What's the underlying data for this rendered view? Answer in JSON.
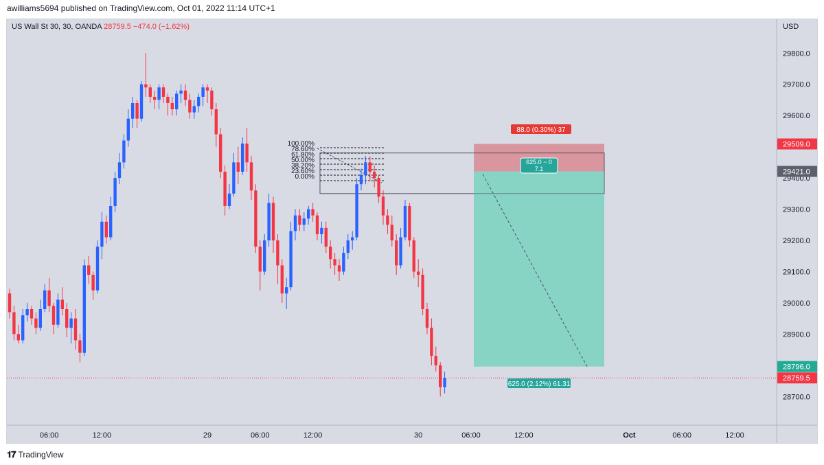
{
  "header": {
    "published": "awilliams5694 published on TradingView.com, Oct 01, 2022 11:14 UTC+1"
  },
  "legend": {
    "symbol": "US Wall St 30, 30, OANDA",
    "price": "28759.5",
    "change": "−474.0 (−1.62%)"
  },
  "footer": {
    "brand": "TradingView",
    "logo": "tradingview-logo-icon"
  },
  "colors": {
    "up": "#2962ff",
    "down": "#f23645",
    "background": "#d9dbe4",
    "profit": "#7fd3c2",
    "stop": "#d88a92"
  },
  "chart_data": {
    "type": "candlestick",
    "currency": "USD",
    "y_axis_labels": [
      "29800.0",
      "29700.0",
      "29600.0",
      "29500.0",
      "29400.0",
      "29300.0",
      "29200.0",
      "29100.0",
      "29000.0",
      "28900.0",
      "28700.0"
    ],
    "ylim": [
      28650,
      29860
    ],
    "x_axis_labels": [
      {
        "label": "06:00",
        "bar": 9
      },
      {
        "label": "12:00",
        "bar": 21
      },
      {
        "label": "29",
        "bar": 45
      },
      {
        "label": "06:00",
        "bar": 57
      },
      {
        "label": "12:00",
        "bar": 69
      },
      {
        "label": "30",
        "bar": 93
      },
      {
        "label": "06:00",
        "bar": 105
      },
      {
        "label": "12:00",
        "bar": 117
      },
      {
        "label": "Oct",
        "bar": 141,
        "bold": true
      },
      {
        "label": "06:00",
        "bar": 153
      },
      {
        "label": "12:00",
        "bar": 165
      }
    ],
    "price_tags": [
      {
        "label": "29509.0",
        "value": 29509,
        "color": "#f23645"
      },
      {
        "label": "29421.0",
        "value": 29421,
        "color": "#5d606b"
      },
      {
        "label": "28796.0",
        "value": 28796,
        "color": "#22ab94"
      },
      {
        "label": "28759.5",
        "value": 28759.5,
        "color": "#f23645"
      }
    ],
    "current_price": 28759.5,
    "candles": [
      [
        29030,
        29045,
        28950,
        28970
      ],
      [
        28970,
        28990,
        28880,
        28900
      ],
      [
        28900,
        28930,
        28870,
        28880
      ],
      [
        28880,
        28980,
        28870,
        28960
      ],
      [
        28960,
        29000,
        28940,
        28980
      ],
      [
        28980,
        28990,
        28930,
        28950
      ],
      [
        28950,
        28970,
        28900,
        28920
      ],
      [
        28920,
        29010,
        28910,
        28980
      ],
      [
        28980,
        29060,
        28970,
        29040
      ],
      [
        29040,
        29080,
        28970,
        28990
      ],
      [
        28990,
        29000,
        28900,
        28930
      ],
      [
        28930,
        29030,
        28920,
        29010
      ],
      [
        29010,
        29050,
        28960,
        28980
      ],
      [
        28980,
        29000,
        28890,
        28920
      ],
      [
        28920,
        28970,
        28870,
        28950
      ],
      [
        28950,
        28980,
        28850,
        28880
      ],
      [
        28880,
        28900,
        28810,
        28840
      ],
      [
        28840,
        29140,
        28830,
        29120
      ],
      [
        29120,
        29150,
        29060,
        29090
      ],
      [
        29090,
        29100,
        29010,
        29040
      ],
      [
        29040,
        29200,
        29030,
        29180
      ],
      [
        29180,
        29290,
        29140,
        29260
      ],
      [
        29260,
        29280,
        29190,
        29210
      ],
      [
        29210,
        29340,
        29200,
        29310
      ],
      [
        29310,
        29420,
        29290,
        29400
      ],
      [
        29400,
        29480,
        29380,
        29450
      ],
      [
        29450,
        29540,
        29430,
        29520
      ],
      [
        29520,
        29620,
        29500,
        29590
      ],
      [
        29590,
        29660,
        29560,
        29640
      ],
      [
        29640,
        29650,
        29560,
        29590
      ],
      [
        29590,
        29710,
        29580,
        29700
      ],
      [
        29700,
        29800,
        29660,
        29690
      ],
      [
        29690,
        29700,
        29640,
        29660
      ],
      [
        29660,
        29680,
        29620,
        29650
      ],
      [
        29650,
        29700,
        29620,
        29690
      ],
      [
        29690,
        29700,
        29640,
        29660
      ],
      [
        29660,
        29670,
        29600,
        29640
      ],
      [
        29640,
        29660,
        29600,
        29620
      ],
      [
        29620,
        29680,
        29600,
        29670
      ],
      [
        29670,
        29700,
        29640,
        29680
      ],
      [
        29680,
        29700,
        29630,
        29650
      ],
      [
        29650,
        29670,
        29590,
        29610
      ],
      [
        29610,
        29650,
        29590,
        29630
      ],
      [
        29630,
        29670,
        29610,
        29660
      ],
      [
        29660,
        29700,
        29630,
        29690
      ],
      [
        29690,
        29700,
        29640,
        29680
      ],
      [
        29680,
        29690,
        29600,
        29620
      ],
      [
        29620,
        29640,
        29500,
        29540
      ],
      [
        29540,
        29560,
        29400,
        29420
      ],
      [
        29420,
        29440,
        29280,
        29310
      ],
      [
        29310,
        29380,
        29300,
        29350
      ],
      [
        29350,
        29480,
        29340,
        29450
      ],
      [
        29450,
        29500,
        29380,
        29420
      ],
      [
        29420,
        29530,
        29410,
        29510
      ],
      [
        29510,
        29560,
        29420,
        29450
      ],
      [
        29450,
        29470,
        29330,
        29360
      ],
      [
        29360,
        29380,
        29160,
        29180
      ],
      [
        29180,
        29200,
        29040,
        29100
      ],
      [
        29100,
        29220,
        29090,
        29200
      ],
      [
        29200,
        29350,
        29180,
        29320
      ],
      [
        29320,
        29340,
        29160,
        29200
      ],
      [
        29200,
        29220,
        29060,
        29120
      ],
      [
        29120,
        29140,
        29000,
        29030
      ],
      [
        29030,
        29080,
        28980,
        29050
      ],
      [
        29050,
        29260,
        29040,
        29230
      ],
      [
        29230,
        29300,
        29200,
        29280
      ],
      [
        29280,
        29300,
        29230,
        29250
      ],
      [
        29250,
        29290,
        29230,
        29270
      ],
      [
        29270,
        29310,
        29250,
        29300
      ],
      [
        29300,
        29320,
        29260,
        29280
      ],
      [
        29280,
        29290,
        29200,
        29220
      ],
      [
        29220,
        29260,
        29190,
        29240
      ],
      [
        29240,
        29260,
        29160,
        29180
      ],
      [
        29180,
        29200,
        29110,
        29140
      ],
      [
        29140,
        29160,
        29090,
        29120
      ],
      [
        29120,
        29140,
        29070,
        29100
      ],
      [
        29100,
        29180,
        29090,
        29160
      ],
      [
        29160,
        29220,
        29140,
        29200
      ],
      [
        29200,
        29230,
        29170,
        29210
      ],
      [
        29210,
        29400,
        29200,
        29380
      ],
      [
        29380,
        29430,
        29360,
        29410
      ],
      [
        29410,
        29470,
        29380,
        29450
      ],
      [
        29450,
        29470,
        29390,
        29420
      ],
      [
        29420,
        29440,
        29370,
        29400
      ],
      [
        29400,
        29410,
        29320,
        29340
      ],
      [
        29340,
        29360,
        29250,
        29280
      ],
      [
        29280,
        29300,
        29220,
        29250
      ],
      [
        29250,
        29280,
        29180,
        29200
      ],
      [
        29200,
        29220,
        29090,
        29120
      ],
      [
        29120,
        29240,
        29110,
        29210
      ],
      [
        29210,
        29330,
        29200,
        29310
      ],
      [
        29310,
        29320,
        29180,
        29200
      ],
      [
        29200,
        29210,
        29080,
        29100
      ],
      [
        29100,
        29140,
        29050,
        29090
      ],
      [
        29090,
        29110,
        28960,
        28980
      ],
      [
        28980,
        29000,
        28900,
        28920
      ],
      [
        28920,
        28950,
        28800,
        28830
      ],
      [
        28830,
        28860,
        28780,
        28800
      ],
      [
        28800,
        28810,
        28700,
        28730
      ],
      [
        28730,
        28780,
        28710,
        28759.5
      ]
    ],
    "fib_levels": [
      "100.00%",
      "78.60%",
      "61.80%",
      "50.00%",
      "38.20%",
      "23.60%",
      "0.00%"
    ],
    "position": {
      "type": "short",
      "entry": 29421,
      "stop": 29509,
      "target": 28796,
      "stop_label": "88.0 (0.30%) 37",
      "target_label": "625.0 (2.12%) 61.31",
      "center_label_top": "625.0 ~ 0",
      "center_label_bottom": "7.1"
    },
    "grid": false,
    "legend_position": "top-left"
  }
}
